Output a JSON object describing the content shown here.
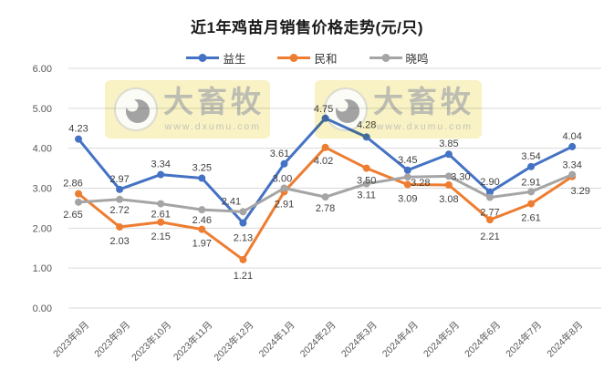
{
  "title": "近1年鸡苗月销售价格走势(元/只)",
  "legend": [
    {
      "label": "益生",
      "color": "#4472C4"
    },
    {
      "label": "民和",
      "color": "#ED7D31"
    },
    {
      "label": "晓鸣",
      "color": "#A5A5A5"
    }
  ],
  "watermark": {
    "brand": "大畜牧",
    "url": "www.dxumu.com"
  },
  "colors": {
    "grid": "#D9D9D9",
    "axis_text": "#595959",
    "data_label": "#404040",
    "watermark_bg": "#F8F2C4"
  },
  "chart_data": {
    "type": "line",
    "title": "近1年鸡苗月销售价格走势(元/只)",
    "categories": [
      "2023年8月",
      "2023年9月",
      "2023年10月",
      "2023年11月",
      "2023年12月",
      "2024年1月",
      "2024年2月",
      "2024年3月",
      "2024年4月",
      "2024年5月",
      "2024年6月",
      "2024年7月",
      "2024年8月"
    ],
    "series": [
      {
        "name": "益生",
        "slug": "yisheng",
        "color": "#4472C4",
        "values": [
          4.23,
          2.97,
          3.34,
          3.25,
          2.13,
          3.61,
          4.75,
          4.28,
          3.45,
          3.85,
          2.9,
          3.54,
          4.04
        ],
        "label_dx": [
          0,
          0,
          0,
          0,
          0,
          -5,
          -2,
          0,
          0,
          0,
          0,
          0,
          0
        ],
        "label_dy": [
          -8,
          -8,
          -8,
          -8,
          20,
          -8,
          -7,
          -10,
          -8,
          -8,
          -8,
          -8,
          -8
        ]
      },
      {
        "name": "民和",
        "slug": "minhe",
        "color": "#ED7D31",
        "values": [
          2.86,
          2.03,
          2.15,
          1.97,
          1.21,
          2.91,
          4.02,
          3.5,
          3.09,
          3.08,
          2.21,
          2.61,
          3.29
        ],
        "label_dx": [
          -6,
          0,
          0,
          0,
          0,
          0,
          -2,
          0,
          0,
          0,
          0,
          0,
          9
        ],
        "label_dy": [
          -8,
          19,
          19,
          19,
          21,
          17,
          18,
          17,
          19,
          19,
          22,
          19,
          19
        ]
      },
      {
        "name": "晓鸣",
        "slug": "xiaoming",
        "color": "#A5A5A5",
        "values": [
          2.65,
          2.72,
          2.61,
          2.46,
          2.41,
          3.0,
          2.78,
          3.11,
          3.28,
          3.3,
          2.77,
          2.91,
          3.34
        ],
        "label_dx": [
          -6,
          0,
          0,
          0,
          -13,
          -2,
          0,
          0,
          14,
          13,
          0,
          0,
          0
        ],
        "label_dy": [
          17,
          15,
          15,
          15,
          -8,
          -7,
          16,
          16,
          10,
          4,
          20,
          -7,
          -7
        ]
      }
    ],
    "y_axis": {
      "min": 0,
      "max": 6,
      "step": 1,
      "tick_labels": [
        "0.00",
        "1.00",
        "2.00",
        "3.00",
        "4.00",
        "5.00",
        "6.00"
      ]
    },
    "grid": true,
    "legend_position": "top",
    "value_decimals": 2
  }
}
